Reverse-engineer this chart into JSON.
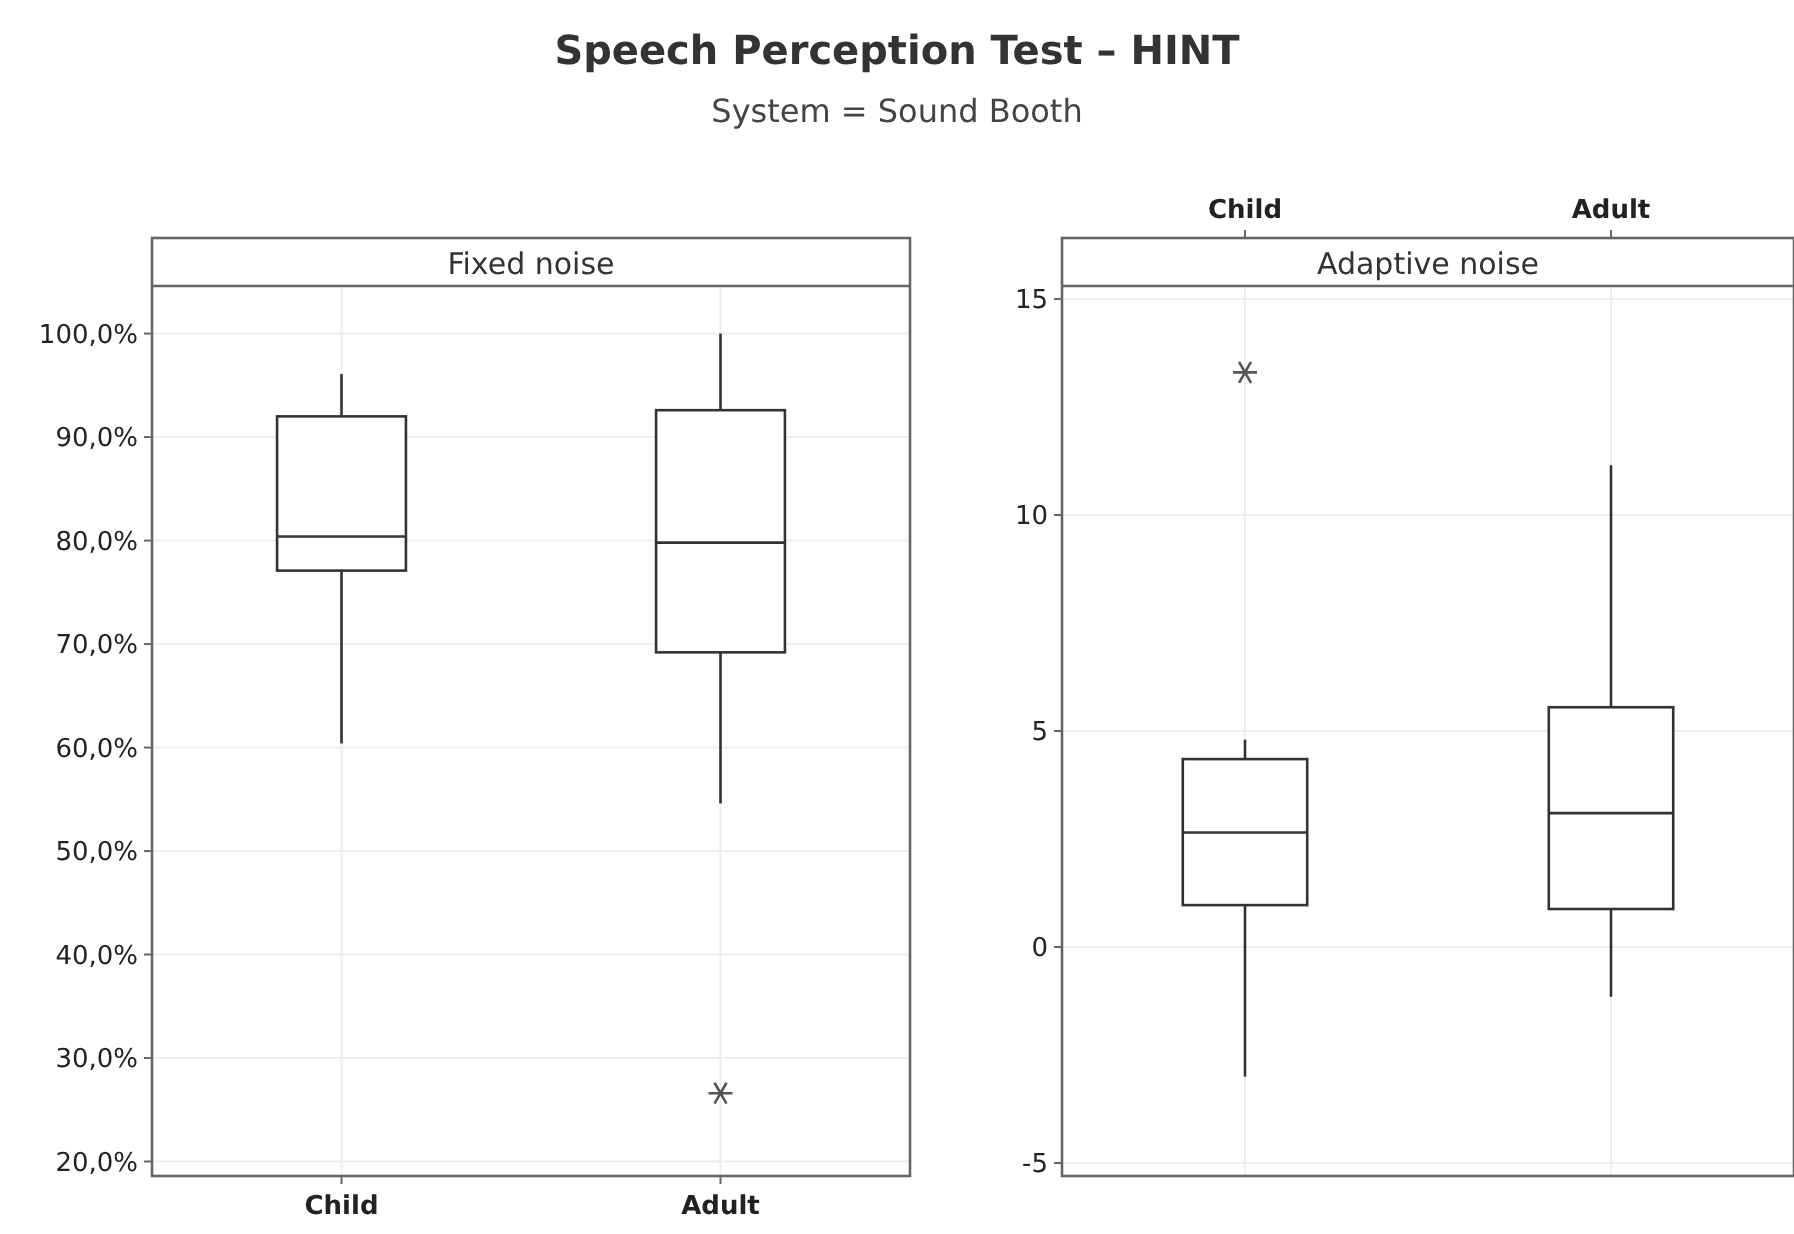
{
  "chart_data": [
    {
      "type": "box",
      "title": "Speech Perception Test – HINT",
      "subtitle": "System = Sound Booth",
      "annotations": [
        "Fixed noise"
      ],
      "categories": [
        "Child",
        "Adult"
      ],
      "ylim": [
        18.6,
        104.6
      ],
      "yticks": [
        {
          "value": 20,
          "label": "20,0%"
        },
        {
          "value": 30,
          "label": "30,0%"
        },
        {
          "value": 40,
          "label": "40,0%"
        },
        {
          "value": 50,
          "label": "50,0%"
        },
        {
          "value": 60,
          "label": "60,0%"
        },
        {
          "value": 70,
          "label": "70,0%"
        },
        {
          "value": 80,
          "label": "80,0%"
        },
        {
          "value": 90,
          "label": "90,0%"
        },
        {
          "value": 100,
          "label": "100,0%"
        }
      ],
      "grid": true,
      "boxes": [
        {
          "low": 60.4,
          "q1": 77.1,
          "median": 80.4,
          "q3": 92,
          "high": 96.1
        },
        {
          "low": 54.6,
          "q1": 69.2,
          "median": 79.8,
          "q3": 92.6,
          "high": 100,
          "outliers": [
            26.6
          ]
        }
      ]
    },
    {
      "type": "box",
      "annotations": [
        "Adaptive noise"
      ],
      "categories": [
        "Child",
        "Adult"
      ],
      "ylim": [
        -5.3,
        15.3
      ],
      "yticks": [
        -5,
        0,
        5,
        10,
        15
      ],
      "grid": true,
      "boxes": [
        {
          "low": -3.0,
          "q1": 0.97,
          "median": 2.65,
          "q3": 4.35,
          "high": 4.8,
          "outliers": [
            13.3
          ]
        },
        {
          "low": -1.15,
          "q1": 0.88,
          "median": 3.1,
          "q3": 5.55,
          "high": 11.15
        }
      ]
    }
  ]
}
